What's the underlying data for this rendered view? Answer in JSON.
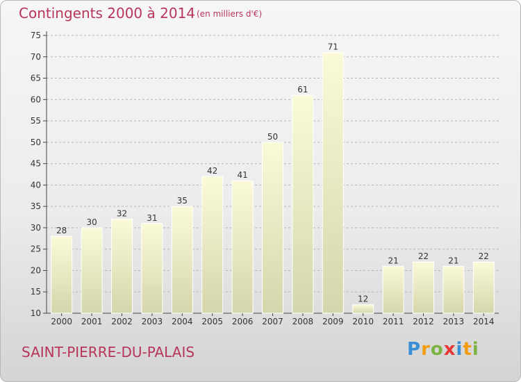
{
  "header": {
    "title": "Contingents 2000 à 2014",
    "subtitle": "(en milliers d'€)"
  },
  "footer": {
    "commune": "SAINT-PIERRE-DU-PALAIS",
    "logo": {
      "text": "Proxiti",
      "letters": [
        "P",
        "r",
        "o",
        "x",
        "i",
        "t",
        "i"
      ],
      "colors": [
        "#3a8fd6",
        "#f39c12",
        "#7cb342",
        "#e53935",
        "#3a8fd6",
        "#f39c12",
        "#7cb342"
      ]
    }
  },
  "colors": {
    "title": "#b8355a",
    "bar_top": "#fafad8",
    "bar_bottom": "#d6d6ac"
  },
  "chart_data": {
    "type": "bar",
    "categories": [
      "2000",
      "2001",
      "2002",
      "2003",
      "2004",
      "2005",
      "2006",
      "2007",
      "2008",
      "2009",
      "2010",
      "2011",
      "2012",
      "2013",
      "2014"
    ],
    "values": [
      28,
      30,
      32,
      31,
      35,
      42,
      41,
      50,
      61,
      71,
      12,
      21,
      22,
      21,
      22
    ],
    "ylim": [
      10,
      75
    ],
    "yticks": [
      10,
      15,
      20,
      25,
      30,
      35,
      40,
      45,
      50,
      55,
      60,
      65,
      70,
      75
    ],
    "grid": true,
    "grid_style": "dashed horizontal"
  }
}
